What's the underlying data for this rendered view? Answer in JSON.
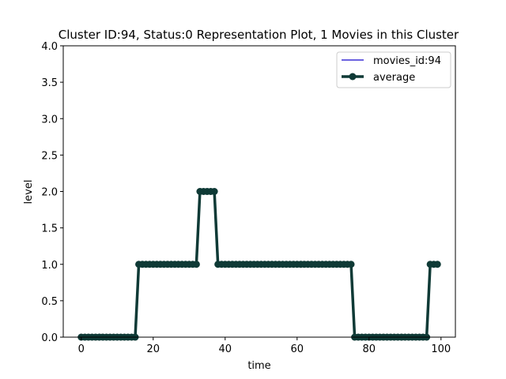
{
  "chart_data": {
    "type": "line",
    "title": "Cluster ID:94, Status:0 Representation Plot, 1 Movies in this Cluster",
    "xlabel": "time",
    "ylabel": "level",
    "xlim": [
      -5,
      104
    ],
    "ylim": [
      0,
      4
    ],
    "xticks": [
      0,
      20,
      40,
      60,
      80,
      100
    ],
    "yticks": [
      0.0,
      0.5,
      1.0,
      1.5,
      2.0,
      2.5,
      3.0,
      3.5,
      4.0
    ],
    "xtick_labels": [
      "0",
      "20",
      "40",
      "60",
      "80",
      "100"
    ],
    "ytick_labels": [
      "0.0",
      "0.5",
      "1.0",
      "1.5",
      "2.0",
      "2.5",
      "3.0",
      "3.5",
      "4.0"
    ],
    "grid": false,
    "legend_position": "top-right",
    "x": [
      0,
      1,
      2,
      3,
      4,
      5,
      6,
      7,
      8,
      9,
      10,
      11,
      12,
      13,
      14,
      15,
      16,
      17,
      18,
      19,
      20,
      21,
      22,
      23,
      24,
      25,
      26,
      27,
      28,
      29,
      30,
      31,
      32,
      33,
      34,
      35,
      36,
      37,
      38,
      39,
      40,
      41,
      42,
      43,
      44,
      45,
      46,
      47,
      48,
      49,
      50,
      51,
      52,
      53,
      54,
      55,
      56,
      57,
      58,
      59,
      60,
      61,
      62,
      63,
      64,
      65,
      66,
      67,
      68,
      69,
      70,
      71,
      72,
      73,
      74,
      75,
      76,
      77,
      78,
      79,
      80,
      81,
      82,
      83,
      84,
      85,
      86,
      87,
      88,
      89,
      90,
      91,
      92,
      93,
      94,
      95,
      96,
      97,
      98,
      99
    ],
    "series": [
      {
        "name": "movies_id:94",
        "color": "#3b2fd6",
        "values": [
          0,
          0,
          0,
          0,
          0,
          0,
          0,
          0,
          0,
          0,
          0,
          0,
          0,
          0,
          0,
          0,
          1,
          1,
          1,
          1,
          1,
          1,
          1,
          1,
          1,
          1,
          1,
          1,
          1,
          1,
          1,
          1,
          1,
          2,
          2,
          2,
          2,
          2,
          1,
          1,
          1,
          1,
          1,
          1,
          1,
          1,
          1,
          1,
          1,
          1,
          1,
          1,
          1,
          1,
          1,
          1,
          1,
          1,
          1,
          1,
          1,
          1,
          1,
          1,
          1,
          1,
          1,
          1,
          1,
          1,
          1,
          1,
          1,
          1,
          1,
          1,
          0,
          0,
          0,
          0,
          0,
          0,
          0,
          0,
          0,
          0,
          0,
          0,
          0,
          0,
          0,
          0,
          0,
          0,
          0,
          0,
          0,
          1,
          1,
          1
        ]
      },
      {
        "name": "average",
        "color": "#0f3a36",
        "marker": "circle",
        "values": [
          0,
          0,
          0,
          0,
          0,
          0,
          0,
          0,
          0,
          0,
          0,
          0,
          0,
          0,
          0,
          0,
          1,
          1,
          1,
          1,
          1,
          1,
          1,
          1,
          1,
          1,
          1,
          1,
          1,
          1,
          1,
          1,
          1,
          2,
          2,
          2,
          2,
          2,
          1,
          1,
          1,
          1,
          1,
          1,
          1,
          1,
          1,
          1,
          1,
          1,
          1,
          1,
          1,
          1,
          1,
          1,
          1,
          1,
          1,
          1,
          1,
          1,
          1,
          1,
          1,
          1,
          1,
          1,
          1,
          1,
          1,
          1,
          1,
          1,
          1,
          1,
          0,
          0,
          0,
          0,
          0,
          0,
          0,
          0,
          0,
          0,
          0,
          0,
          0,
          0,
          0,
          0,
          0,
          0,
          0,
          0,
          0,
          1,
          1,
          1
        ]
      }
    ]
  }
}
